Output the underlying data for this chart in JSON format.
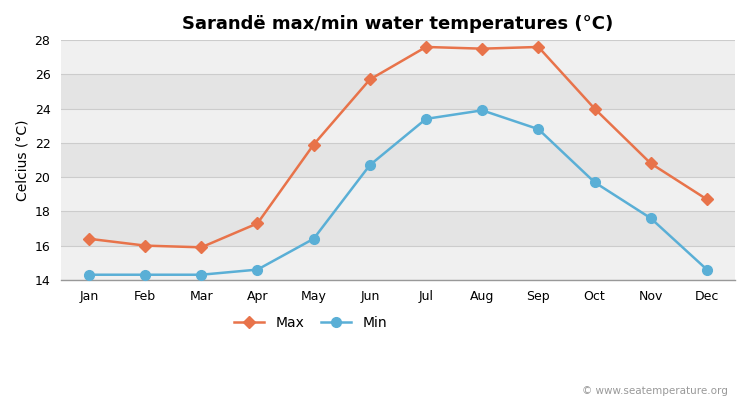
{
  "title": "Sarandë max/min water temperatures (°C)",
  "ylabel": "Celcius (°C)",
  "months": [
    "Jan",
    "Feb",
    "Mar",
    "Apr",
    "May",
    "Jun",
    "Jul",
    "Aug",
    "Sep",
    "Oct",
    "Nov",
    "Dec"
  ],
  "max_temps": [
    16.4,
    16.0,
    15.9,
    17.3,
    21.9,
    25.7,
    27.6,
    27.5,
    27.6,
    24.0,
    20.8,
    18.7
  ],
  "min_temps": [
    14.3,
    14.3,
    14.3,
    14.6,
    16.4,
    20.7,
    23.4,
    23.9,
    22.8,
    19.7,
    17.6,
    14.6
  ],
  "max_color": "#e8734a",
  "min_color": "#5aafd6",
  "figure_bg_color": "#ffffff",
  "plot_bg_color": "#f0f0f0",
  "band_color_light": "#f0f0f0",
  "band_color_dark": "#e4e4e4",
  "ylim": [
    14,
    28
  ],
  "yticks": [
    14,
    16,
    18,
    20,
    22,
    24,
    26,
    28
  ],
  "max_marker": "D",
  "min_marker": "o",
  "max_markersize": 6,
  "min_markersize": 7,
  "linewidth": 1.8,
  "legend_labels": [
    "Max",
    "Min"
  ],
  "watermark": "© www.seatemperature.org",
  "title_fontsize": 13,
  "axis_label_fontsize": 10,
  "tick_fontsize": 9,
  "legend_fontsize": 10
}
